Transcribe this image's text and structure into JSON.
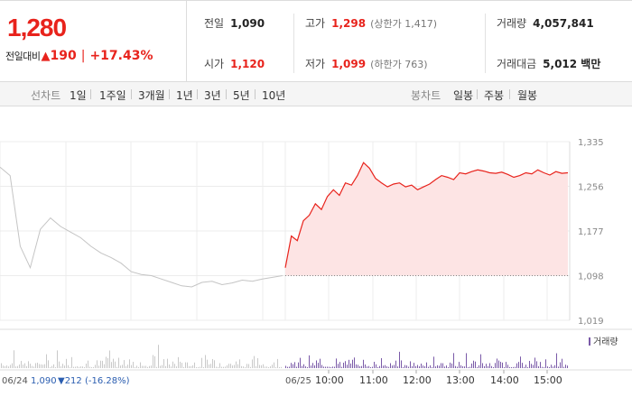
{
  "quote": {
    "current_price": "1,280",
    "change_label": "전일대비",
    "change_arrow": "▲",
    "change_value": "190",
    "change_percent": "+17.43%"
  },
  "stats": {
    "prev_close": {
      "label": "전일",
      "value": "1,090"
    },
    "high": {
      "label": "고가",
      "value": "1,298",
      "sub": "(상한가 1,417)"
    },
    "volume": {
      "label": "거래량",
      "value": "4,057,841"
    },
    "open": {
      "label": "시가",
      "value": "1,120"
    },
    "low": {
      "label": "저가",
      "value": "1,099",
      "sub": "(하한가 763)"
    },
    "trade_value": {
      "label": "거래대금",
      "value": "5,012 백만"
    }
  },
  "periods": {
    "line_label": "선차트",
    "line_items": [
      "1일",
      "1주일",
      "3개월",
      "1년",
      "3년",
      "5년",
      "10년"
    ],
    "active_index": 0,
    "candle_label": "봉차트",
    "candle_items": [
      "일봉",
      "주봉",
      "월봉"
    ]
  },
  "chart": {
    "volume_legend": "거래량",
    "prev_day_label": "06/24",
    "prev_day_close": "1,090",
    "prev_day_change": "▼212 (-16.28%)",
    "today_label": "06/25",
    "colors": {
      "up": "#e8231c",
      "up_fill": "#fde4e4",
      "prev": "#c4c4c4",
      "volume": "#7a5aa8",
      "prev_change": "#2a5db0"
    }
  },
  "chart_data": {
    "type": "line",
    "y_ticks": [
      "1,335",
      "1,256",
      "1,177",
      "1,098",
      "1,019"
    ],
    "ylim": [
      1019,
      1335
    ],
    "x_ticks": [
      "10:00",
      "11:00",
      "12:00",
      "13:00",
      "14:00",
      "15:00"
    ],
    "series": [
      {
        "values": [
          1112,
          1168,
          1160,
          1195,
          1205,
          1225,
          1215,
          1238,
          1250,
          1240,
          1262,
          1258,
          1275,
          1298,
          1288,
          1270,
          1262,
          1255,
          1260,
          1262,
          1255,
          1258,
          1250,
          1255,
          1260,
          1268,
          1275,
          1272,
          1268,
          1280,
          1278,
          1282,
          1285,
          1283,
          1280,
          1279,
          1281,
          1277,
          1272,
          1275,
          1280,
          1278,
          1285,
          1280,
          1276,
          1282,
          1279,
          1280
        ]
      }
    ],
    "prev_series_values": [
      1290,
      1275,
      1150,
      1112,
      1180,
      1200,
      1185,
      1175,
      1165,
      1150,
      1138,
      1130,
      1120,
      1105,
      1100,
      1098,
      1092,
      1086,
      1080,
      1078,
      1086,
      1088,
      1082,
      1085,
      1090,
      1088,
      1092,
      1095,
      1098
    ]
  }
}
